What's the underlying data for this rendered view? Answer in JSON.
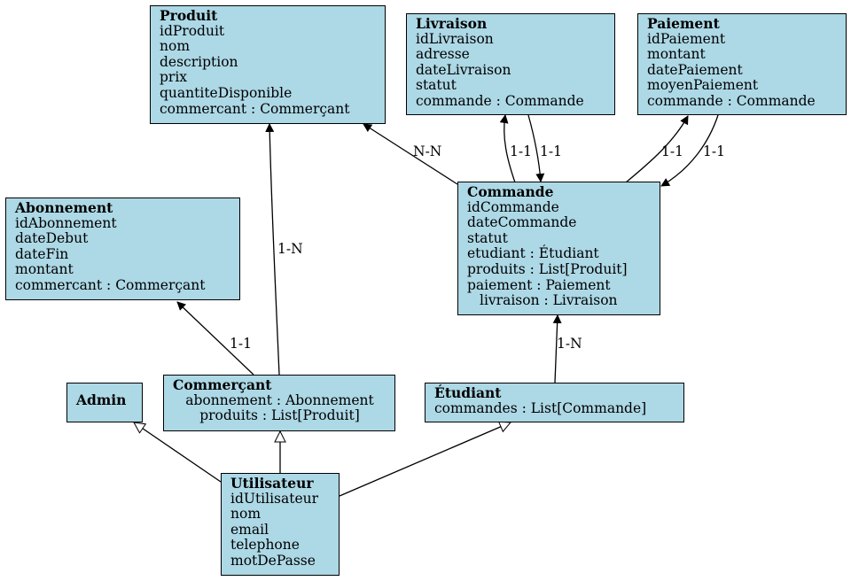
{
  "nodes": {
    "produit": {
      "title": "Produit",
      "attrs": [
        "idProduit",
        "nom",
        "description",
        "prix",
        "quantiteDisponible",
        "commercant : Commerçant"
      ]
    },
    "livraison": {
      "title": "Livraison",
      "attrs": [
        "idLivraison",
        "adresse",
        "dateLivraison",
        "statut",
        "commande : Commande"
      ]
    },
    "paiement": {
      "title": "Paiement",
      "attrs": [
        "idPaiement",
        "montant",
        "datePaiement",
        "moyenPaiement",
        "commande : Commande"
      ]
    },
    "abonnement": {
      "title": "Abonnement",
      "attrs": [
        "idAbonnement",
        "dateDebut",
        "dateFin",
        "montant",
        "commercant : Commerçant"
      ]
    },
    "commande": {
      "title": "Commande",
      "attrs": [
        "idCommande",
        "dateCommande",
        "statut",
        "etudiant : Étudiant",
        "produits : List[Produit]",
        "paiement : Paiement",
        "livraison : Livraison"
      ]
    },
    "admin": {
      "title": "Admin",
      "attrs": []
    },
    "commercant": {
      "title": "Commerçant",
      "attrs": [
        "abonnement : Abonnement",
        "produits : List[Produit]"
      ]
    },
    "etudiant": {
      "title": "Étudiant",
      "attrs": [
        "commandes : List[Commande]"
      ]
    },
    "utilisateur": {
      "title": "Utilisateur",
      "attrs": [
        "idUtilisateur",
        "nom",
        "email",
        "telephone",
        "motDePasse"
      ]
    }
  },
  "edges": {
    "commande_produit": "N-N",
    "commande_livraison": "1-1",
    "livraison_commande": "1-1",
    "commande_paiement": "1-1",
    "paiement_commande": "1-1",
    "commercant_produit": "1-N",
    "commercant_abonnement": "1-1",
    "etudiant_commande": "1-N"
  },
  "colors": {
    "node_fill": "#add8e6",
    "stroke": "#000000"
  }
}
